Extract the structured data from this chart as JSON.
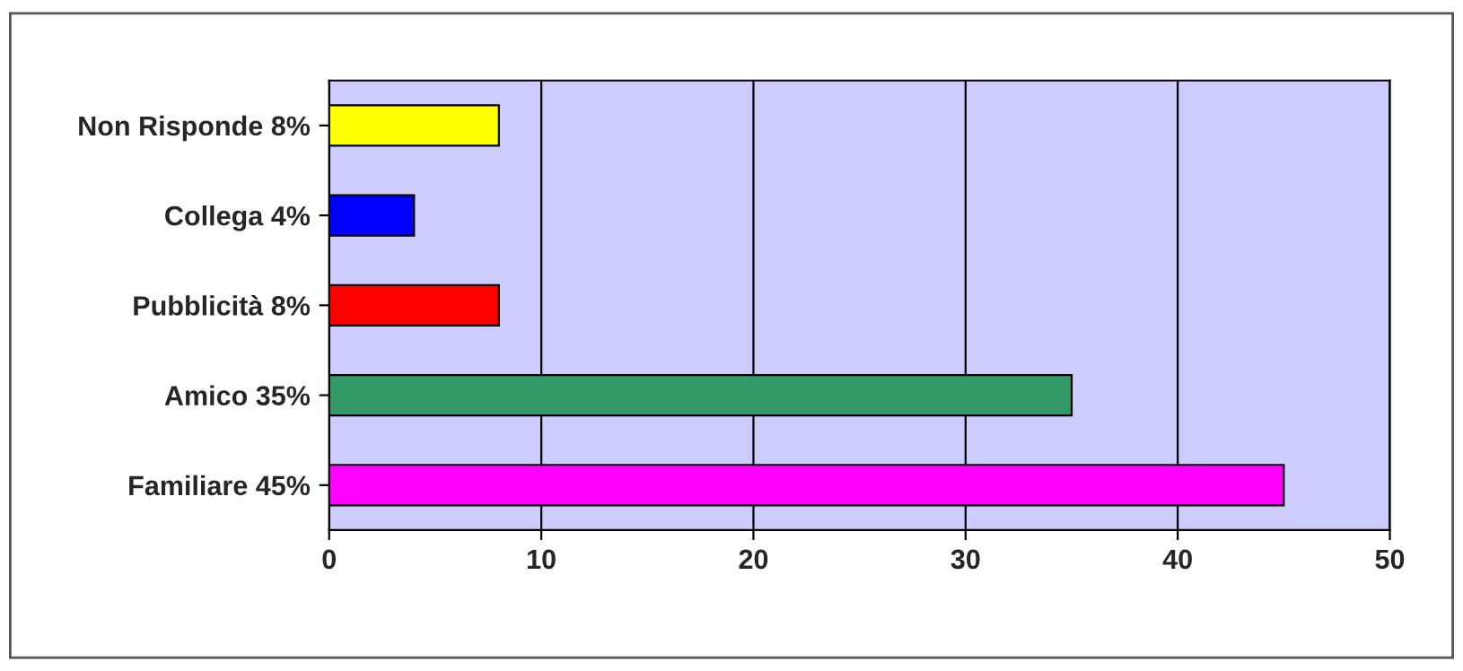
{
  "chart_data": {
    "type": "bar",
    "orientation": "horizontal",
    "categories": [
      "Non Risponde 8%",
      "Collega 4%",
      "Pubblicità 8%",
      "Amico 35%",
      "Familiare 45%"
    ],
    "values": [
      8,
      4,
      8,
      35,
      45
    ],
    "colors": [
      "#ffff00",
      "#0000ff",
      "#ff0000",
      "#339966",
      "#ff00ff"
    ],
    "xlim": [
      0,
      50
    ],
    "xticks": [
      0,
      10,
      20,
      30,
      40,
      50
    ],
    "grid": "x",
    "legend": false
  }
}
